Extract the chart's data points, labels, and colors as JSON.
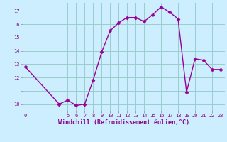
{
  "x": [
    0,
    4,
    5,
    6,
    7,
    8,
    9,
    10,
    11,
    12,
    13,
    14,
    15,
    16,
    17,
    18,
    19,
    20,
    21,
    22,
    23
  ],
  "y": [
    12.8,
    10.0,
    10.3,
    9.9,
    10.0,
    11.8,
    13.9,
    15.5,
    16.1,
    16.5,
    16.5,
    16.2,
    16.7,
    17.3,
    16.9,
    16.4,
    10.9,
    13.4,
    13.3,
    12.6,
    12.6
  ],
  "line_color": "#990099",
  "marker": "D",
  "marker_size": 2.5,
  "bg_color": "#cceeff",
  "grid_color": "#99cccc",
  "xlabel": "Windchill (Refroidissement éolien,°C)",
  "xlabel_color": "#880088",
  "tick_color": "#880088",
  "xticks": [
    0,
    5,
    6,
    7,
    8,
    9,
    10,
    11,
    12,
    13,
    14,
    15,
    16,
    17,
    18,
    19,
    20,
    21,
    22,
    23
  ],
  "yticks": [
    10,
    11,
    12,
    13,
    14,
    15,
    16,
    17
  ],
  "xlim": [
    -0.3,
    23.5
  ],
  "ylim": [
    9.5,
    17.6
  ],
  "line_width": 1.0
}
